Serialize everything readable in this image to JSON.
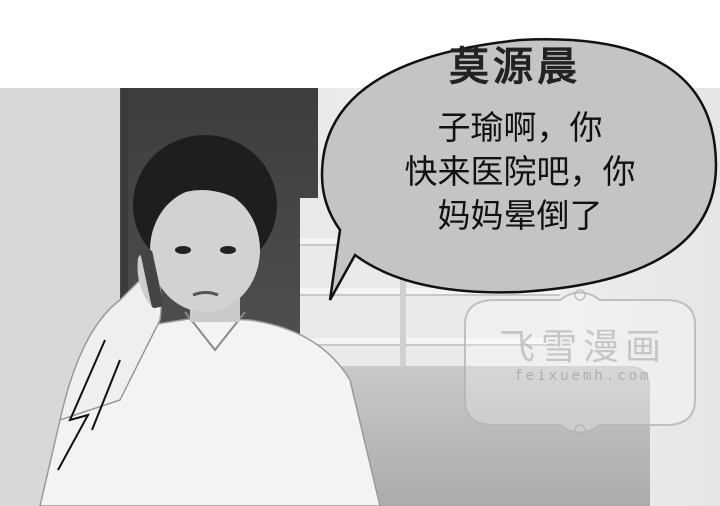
{
  "speaker": {
    "name": "莫源晨"
  },
  "speech_bubble": {
    "lines": [
      "子瑜啊，你",
      "快来医院吧，你",
      "妈妈晕倒了"
    ]
  },
  "watermark": {
    "title": "飞雪漫画",
    "url": "feixuemh.com"
  },
  "colors": {
    "bubble_fill": "#c4c4c4",
    "text": "#111111",
    "watermark": "#bdbdbd"
  }
}
